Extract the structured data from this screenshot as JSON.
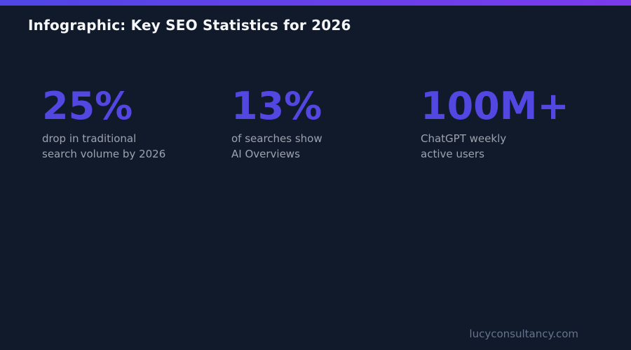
{
  "page": {
    "title": "Infographic: Key SEO Statistics for 2026",
    "footer": "lucyconsultancy.com"
  },
  "theme": {
    "background": "#111a2b",
    "accent_number_color": "#5247e0",
    "bar_gradient_start": "#4f46e5",
    "bar_gradient_end": "#7c3aed",
    "title_color": "#f5f7fa",
    "description_color": "#9ca3af",
    "footer_color": "#64748b"
  },
  "stats": [
    {
      "value": "25%",
      "description_line1": "drop in traditional",
      "description_line2": "search volume by 2026"
    },
    {
      "value": "13%",
      "description_line1": "of searches show",
      "description_line2": "AI Overviews"
    },
    {
      "value": "100M+",
      "description_line1": "ChatGPT weekly",
      "description_line2": "active users"
    }
  ],
  "chart_data": {
    "type": "table",
    "title": "Infographic: Key SEO Statistics for 2026",
    "categories": [
      "drop in traditional search volume by 2026",
      "of searches show AI Overviews",
      "ChatGPT weekly active users"
    ],
    "values": [
      25,
      13,
      100
    ],
    "value_labels": [
      "25%",
      "13%",
      "100M+"
    ],
    "units": [
      "percent",
      "percent",
      "million+ users"
    ],
    "legend_position": "none",
    "grid": false,
    "source_label": "lucyconsultancy.com"
  }
}
